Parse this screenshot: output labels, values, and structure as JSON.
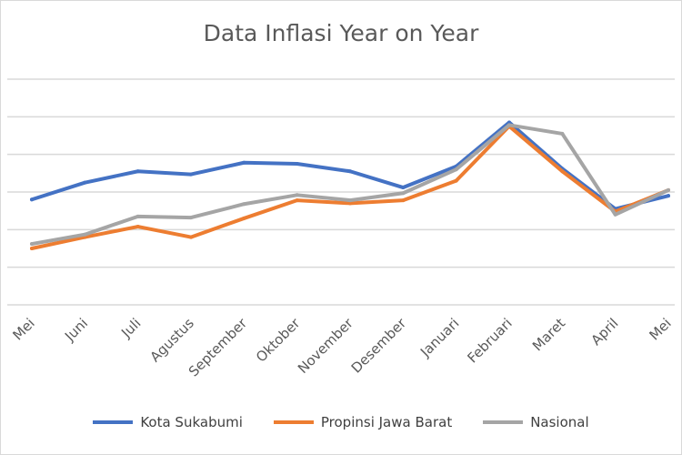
{
  "chart_data": {
    "type": "line",
    "title": "Data Inflasi Year on Year",
    "xlabel": "",
    "ylabel": "",
    "categories": [
      "Mei",
      "Juni",
      "Juli",
      "Agustus",
      "September",
      "Oktober",
      "November",
      "Desember",
      "Januari",
      "Februari",
      "Maret",
      "April",
      "Mei"
    ],
    "ylim": [
      0,
      6
    ],
    "grid": true,
    "y_tick_labels_visible": false,
    "legend_position": "bottom",
    "series": [
      {
        "name": "Kota Sukabumi",
        "color": "#4472c4",
        "values": [
          2.8,
          3.25,
          3.55,
          3.47,
          3.78,
          3.75,
          3.55,
          3.12,
          3.68,
          4.85,
          3.62,
          2.55,
          2.9
        ]
      },
      {
        "name": "Propinsi Jawa Barat",
        "color": "#ed7d31",
        "values": [
          1.5,
          1.8,
          2.08,
          1.8,
          2.3,
          2.78,
          2.7,
          2.78,
          3.3,
          4.75,
          3.55,
          2.48,
          3.05
        ]
      },
      {
        "name": "Nasional",
        "color": "#a5a5a5",
        "values": [
          1.62,
          1.87,
          2.35,
          2.32,
          2.68,
          2.92,
          2.78,
          2.97,
          3.6,
          4.78,
          4.55,
          2.4,
          3.05
        ]
      }
    ]
  }
}
